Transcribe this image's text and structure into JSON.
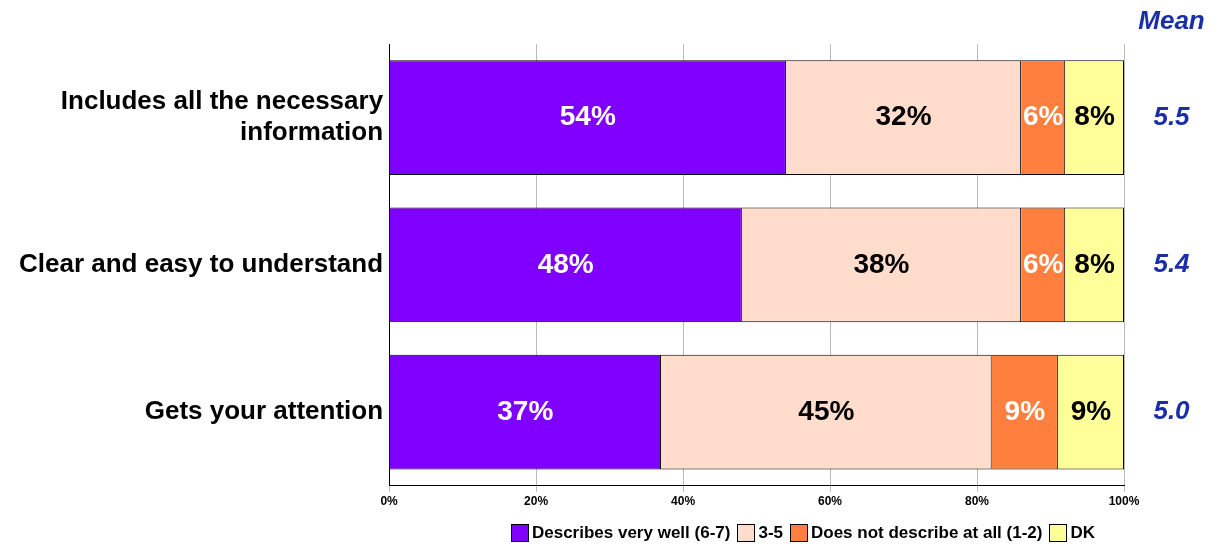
{
  "chart_data": {
    "type": "bar",
    "orientation": "horizontal",
    "stacked": true,
    "categories": [
      "Includes all the necessary information",
      "Clear and easy to understand",
      "Gets your attention"
    ],
    "series": [
      {
        "name": "Describes very well (6-7)",
        "color": "#7f00ff",
        "values": [
          54,
          48,
          37
        ]
      },
      {
        "name": "3-5",
        "color": "#ffdccc",
        "values": [
          32,
          38,
          45
        ]
      },
      {
        "name": "Does not describe at all (1-2)",
        "color": "#ff7f3f",
        "values": [
          6,
          6,
          9
        ]
      },
      {
        "name": "DK",
        "color": "#ffff99",
        "values": [
          8,
          8,
          9
        ]
      }
    ],
    "xlim": [
      0,
      100
    ],
    "xticks": [
      {
        "value": 0,
        "label": "0%"
      },
      {
        "value": 20,
        "label": "20%"
      },
      {
        "value": 40,
        "label": "40%"
      },
      {
        "value": 60,
        "label": "60%"
      },
      {
        "value": 80,
        "label": "80%"
      },
      {
        "value": 100,
        "label": "100%"
      }
    ],
    "value_labels": [
      [
        "54%",
        "48%",
        "37%"
      ],
      [
        "32%",
        "38%",
        "45%"
      ],
      [
        "6%",
        "6%",
        "9%"
      ],
      [
        "8%",
        "8%",
        "9%"
      ]
    ],
    "annotations": [
      "Mean",
      "5.5",
      "5.4",
      "5.0"
    ],
    "grid": "x",
    "legend": "bottom"
  }
}
